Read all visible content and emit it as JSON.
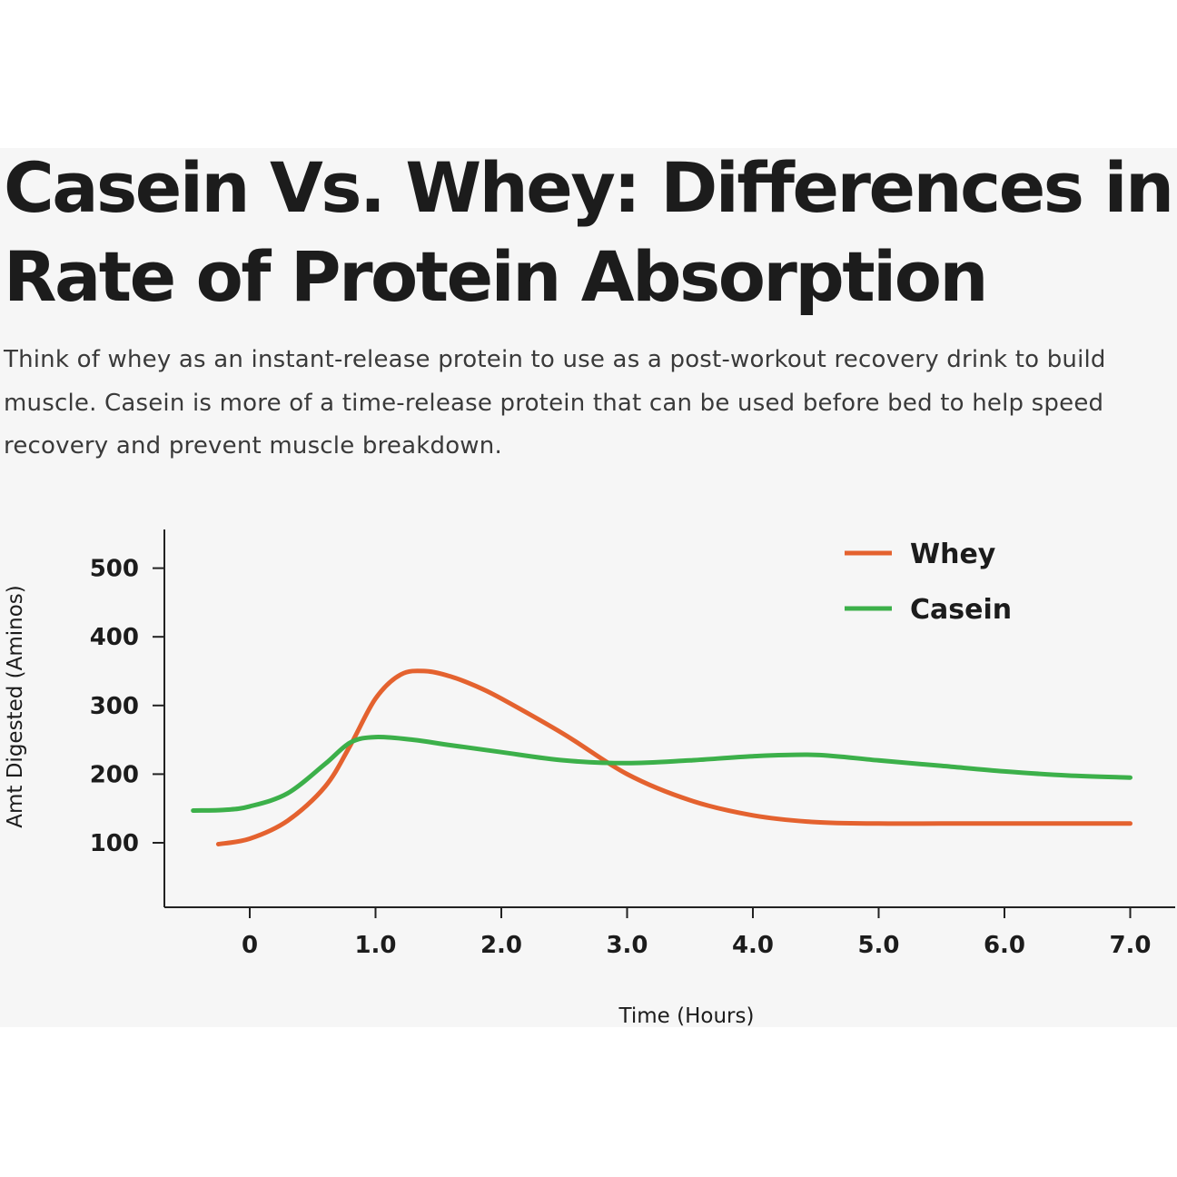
{
  "page": {
    "title_lines": [
      "Casein Vs. Whey: Differences in",
      "Rate of Protein Absorption"
    ],
    "description_lines": [
      "Think of whey as an instant-release protein to use as a post-workout recovery drink to build",
      "muscle. Casein is more of a time-release protein that can be used before bed to help speed",
      "recovery and prevent muscle breakdown."
    ]
  },
  "chart_data": {
    "type": "line",
    "title": "Casein Vs. Whey: Differences in Rate of Protein Absorption",
    "xlabel": "Time (Hours)",
    "ylabel": "Amt Digested (Aminos)",
    "xlim": [
      -0.7,
      7.4
    ],
    "ylim": [
      0,
      570
    ],
    "x_ticks": [
      0,
      1,
      2,
      3,
      4,
      5,
      6,
      7
    ],
    "x_tick_labels": [
      "0",
      "1.0",
      "2.0",
      "3.0",
      "4.0",
      "5.0",
      "6.0",
      "7.0"
    ],
    "y_ticks": [
      100,
      200,
      300,
      400,
      500
    ],
    "y_tick_labels": [
      "100",
      "200",
      "300",
      "400",
      "500"
    ],
    "grid": false,
    "legend_position": "top-right",
    "series": [
      {
        "name": "Whey",
        "color": "#e4622f",
        "x": [
          -0.25,
          0.0,
          0.3,
          0.6,
          0.8,
          1.0,
          1.2,
          1.4,
          1.6,
          1.8,
          2.0,
          2.5,
          3.0,
          3.5,
          4.0,
          4.5,
          5.0,
          5.5,
          6.0,
          6.5,
          7.0
        ],
        "y": [
          98,
          106,
          132,
          182,
          242,
          310,
          345,
          350,
          342,
          328,
          310,
          258,
          200,
          162,
          140,
          130,
          128,
          128,
          128,
          128,
          128
        ]
      },
      {
        "name": "Casein",
        "color": "#3cb04a",
        "x": [
          -0.45,
          -0.2,
          0.0,
          0.3,
          0.6,
          0.8,
          1.0,
          1.3,
          1.6,
          2.0,
          2.5,
          3.0,
          3.5,
          4.0,
          4.5,
          5.0,
          5.5,
          6.0,
          6.5,
          7.0
        ],
        "y": [
          147,
          148,
          153,
          172,
          215,
          246,
          254,
          250,
          242,
          232,
          220,
          216,
          220,
          226,
          228,
          220,
          212,
          204,
          198,
          195
        ]
      }
    ]
  }
}
